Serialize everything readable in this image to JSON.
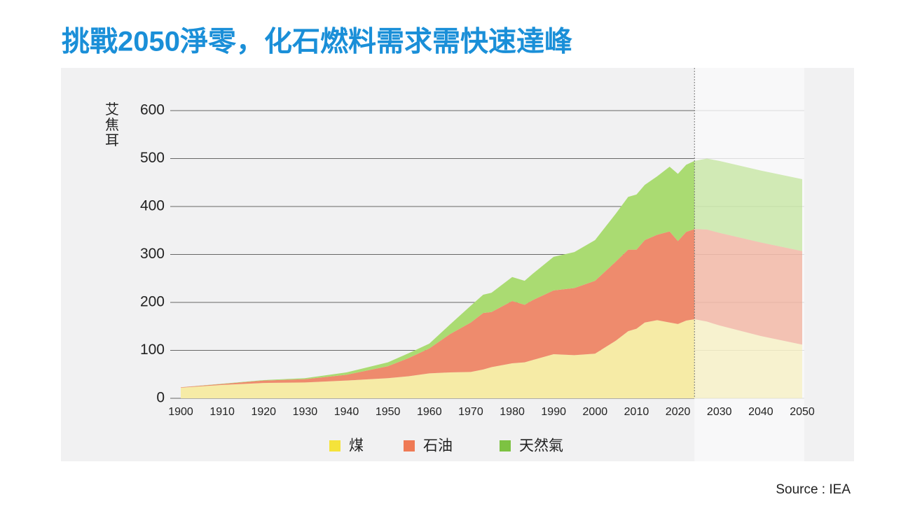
{
  "chart_data": {
    "type": "stacked_area",
    "title": "挑戰2050淨零，化石燃料需求需快速達峰",
    "y_label": "艾焦耳",
    "source": "Source : IEA",
    "x": [
      1900,
      1910,
      1920,
      1930,
      1940,
      1950,
      1955,
      1960,
      1965,
      1970,
      1973,
      1975,
      1980,
      1983,
      1985,
      1990,
      1995,
      2000,
      2005,
      2008,
      2010,
      2012,
      2015,
      2018,
      2020,
      2022,
      2024,
      2027,
      2030,
      2040,
      2050
    ],
    "projection_from": 2024,
    "series": [
      {
        "name": "煤",
        "color": "#f6eba6",
        "legend_color": "#f5e33a",
        "values": [
          22,
          28,
          32,
          33,
          37,
          42,
          46,
          52,
          54,
          55,
          60,
          65,
          73,
          75,
          80,
          92,
          90,
          93,
          120,
          140,
          145,
          158,
          163,
          158,
          155,
          162,
          165,
          160,
          152,
          130,
          112
        ]
      },
      {
        "name": "石油",
        "color": "#ee8b6d",
        "legend_color": "#ef7a55",
        "values": [
          1,
          2,
          5,
          7,
          12,
          25,
          38,
          52,
          80,
          103,
          118,
          115,
          130,
          120,
          125,
          133,
          140,
          152,
          165,
          170,
          165,
          172,
          178,
          190,
          173,
          185,
          188,
          192,
          193,
          195,
          195
        ]
      },
      {
        "name": "天然氣",
        "color": "#aadb72",
        "legend_color": "#7dc242",
        "values": [
          0,
          0.5,
          1,
          2,
          5,
          8,
          10,
          10,
          20,
          35,
          38,
          40,
          50,
          50,
          55,
          70,
          75,
          85,
          100,
          110,
          115,
          115,
          122,
          135,
          140,
          140,
          142,
          148,
          150,
          150,
          150
        ]
      }
    ],
    "xlim": [
      1900,
      2050
    ],
    "ylim": [
      0,
      600
    ],
    "xticks": [
      1900,
      1910,
      1920,
      1930,
      1940,
      1950,
      1960,
      1970,
      1980,
      1990,
      2000,
      2010,
      2020,
      2030,
      2040,
      2050
    ],
    "yticks": [
      0,
      100,
      200,
      300,
      400,
      500,
      600
    ],
    "grid": true
  }
}
